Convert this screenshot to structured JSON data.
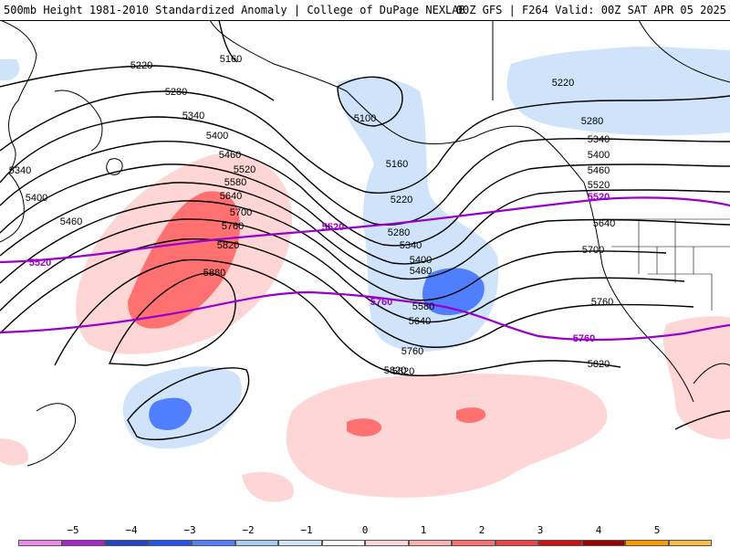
{
  "header": {
    "left": "500mb Height 1981-2010 Standardized Anomaly | College of DuPage NEXLAB",
    "right": "00Z GFS | F264 Valid: 00Z SAT APR 05 2025"
  },
  "contour_labels": [
    "5220",
    "5160",
    "5280",
    "5340",
    "5400",
    "5460",
    "5520",
    "5580",
    "5640",
    "5700",
    "5760",
    "5820",
    "5880",
    "5100",
    "5160",
    "5220",
    "5280",
    "5340",
    "5400",
    "5460",
    "5580",
    "5640",
    "5760",
    "5820",
    "5220",
    "5280",
    "5340",
    "5400",
    "5460",
    "5520",
    "5640",
    "5700",
    "5760",
    "5820",
    "5820",
    "5340",
    "5400",
    "5460"
  ],
  "reference_labels": [
    "5520",
    "5520",
    "5520",
    "5760",
    "5760"
  ],
  "colorbar": {
    "ticks": [
      "−5",
      "−4",
      "−3",
      "−2",
      "−1",
      "0",
      "1",
      "2",
      "3",
      "4",
      "5"
    ],
    "colors": [
      "#ee88ee",
      "#aa22cc",
      "#2244cc",
      "#2255ee",
      "#4f7fff",
      "#a8cef5",
      "#cfe4fb",
      "#ffffff",
      "#ffd6d6",
      "#ffb0b0",
      "#ff7070",
      "#ee4444",
      "#cc1111",
      "#990000",
      "#ff9900",
      "#ffbb44"
    ]
  },
  "colors": {
    "reference_contour": "#9900cc",
    "height_contour": "#000000"
  }
}
